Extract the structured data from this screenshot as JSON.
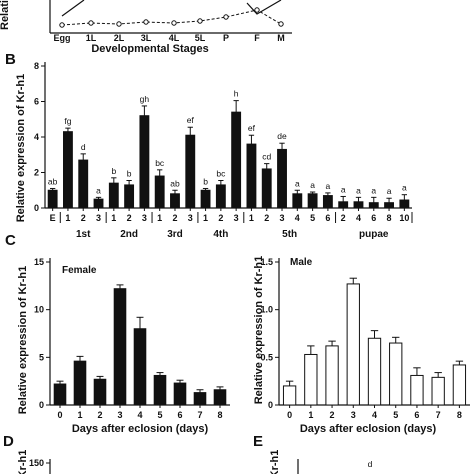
{
  "panels": {
    "a": {
      "letter": "",
      "ylabel": "Relati",
      "xlabel": "Developmental Stages",
      "categories": [
        "Egg",
        "1L",
        "2L",
        "3L",
        "4L",
        "5L",
        "P",
        "F",
        "M"
      ]
    },
    "b": {
      "letter": "B",
      "ylabel": "Relative expression of Kr-h1"
    },
    "c": {
      "letter": "C",
      "ylabel": "Relative expression of Kr-h1"
    },
    "d": {
      "letter": "D",
      "ylabel": "Kr-h1",
      "ytick": "150"
    },
    "e": {
      "letter": "E",
      "ylabel": "Kr-h1",
      "sig": "d"
    }
  },
  "chart_data": [
    {
      "id": "B",
      "type": "bar",
      "ylabel": "Relative expression of Kr-h1",
      "ylim": [
        0,
        8
      ],
      "yticks": [
        0,
        2,
        4,
        6,
        8
      ],
      "categories": [
        "E",
        "1",
        "2",
        "3",
        "1",
        "2",
        "3",
        "1",
        "2",
        "3",
        "1",
        "2",
        "3",
        "1",
        "2",
        "3",
        "4",
        "5",
        "6",
        "2",
        "4",
        "6",
        "8",
        "10"
      ],
      "groups": [
        {
          "label": "1st",
          "from": 1,
          "to": 3
        },
        {
          "label": "2nd",
          "from": 4,
          "to": 6
        },
        {
          "label": "3rd",
          "from": 7,
          "to": 9
        },
        {
          "label": "4th",
          "from": 10,
          "to": 12
        },
        {
          "label": "5th",
          "from": 13,
          "to": 18
        },
        {
          "label": "pupae",
          "from": 19,
          "to": 23
        }
      ],
      "values": [
        1.0,
        4.3,
        2.7,
        0.5,
        1.4,
        1.3,
        5.2,
        1.8,
        0.8,
        4.1,
        1.0,
        1.3,
        5.4,
        3.6,
        2.2,
        3.3,
        0.8,
        0.8,
        0.7,
        0.35,
        0.35,
        0.3,
        0.3,
        0.45
      ],
      "errors": [
        0.1,
        0.2,
        0.35,
        0.1,
        0.3,
        0.25,
        0.55,
        0.35,
        0.2,
        0.45,
        0.1,
        0.25,
        0.65,
        0.5,
        0.3,
        0.35,
        0.2,
        0.1,
        0.15,
        0.3,
        0.25,
        0.3,
        0.25,
        0.3
      ],
      "letters": [
        "ab",
        "fg",
        "d",
        "a",
        "b",
        "b",
        "gh",
        "bc",
        "ab",
        "ef",
        "b",
        "bc",
        "h",
        "ef",
        "cd",
        "de",
        "a",
        "a",
        "a",
        "a",
        "a",
        "a",
        "a",
        "a"
      ]
    },
    {
      "id": "C-female",
      "type": "bar",
      "title": "Female",
      "xlabel": "Days after eclosion (days)",
      "ylim": [
        0,
        15
      ],
      "yticks": [
        0,
        5,
        10,
        15
      ],
      "categories": [
        "0",
        "1",
        "2",
        "3",
        "4",
        "5",
        "6",
        "7",
        "8"
      ],
      "values": [
        2.2,
        4.6,
        2.7,
        12.2,
        8.0,
        3.1,
        2.3,
        1.3,
        1.6
      ],
      "errors": [
        0.3,
        0.5,
        0.3,
        0.4,
        1.2,
        0.3,
        0.3,
        0.3,
        0.3
      ]
    },
    {
      "id": "C-male",
      "type": "bar",
      "title": "Male",
      "xlabel": "Days after eclosion (days)",
      "ylim": [
        0,
        1.5
      ],
      "yticks": [
        0,
        0.5,
        1.0,
        1.5
      ],
      "ytick_labels": [
        "0",
        "0.5",
        "1.0",
        "1.5"
      ],
      "categories": [
        "0",
        "1",
        "2",
        "3",
        "4",
        "5",
        "6",
        "7",
        "8"
      ],
      "values": [
        0.2,
        0.53,
        0.62,
        1.27,
        0.7,
        0.65,
        0.31,
        0.29,
        0.42
      ],
      "errors": [
        0.05,
        0.09,
        0.05,
        0.06,
        0.08,
        0.06,
        0.08,
        0.05,
        0.04
      ]
    }
  ]
}
